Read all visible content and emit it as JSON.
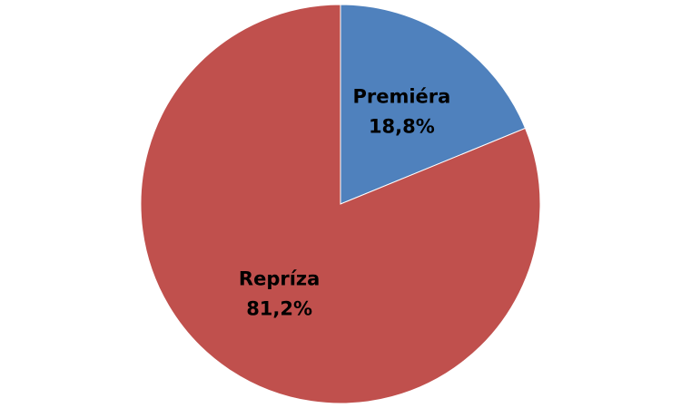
{
  "chart_data": {
    "type": "pie",
    "categories": [
      "Premiéra",
      "Repríza"
    ],
    "values": [
      18.8,
      81.2
    ],
    "value_labels": [
      "18,8%",
      "81,2%"
    ],
    "colors": [
      "#4f81bd",
      "#c0504d"
    ]
  }
}
